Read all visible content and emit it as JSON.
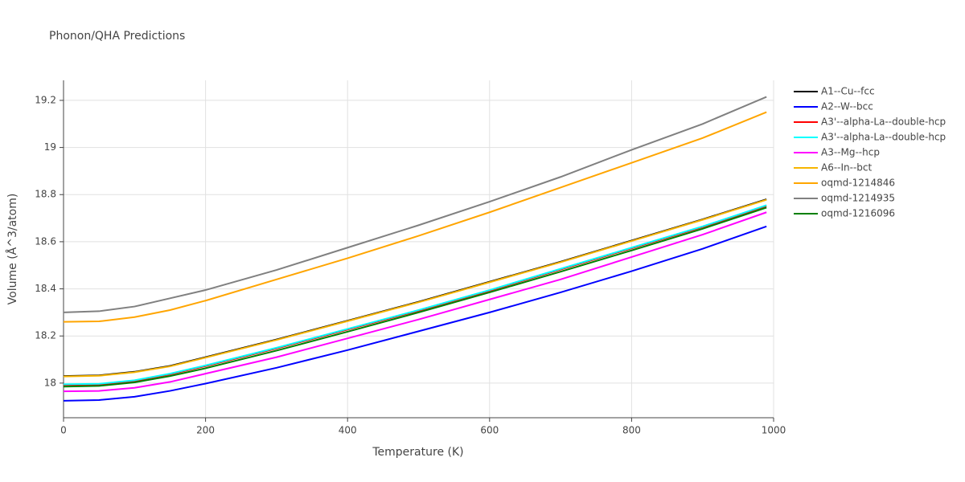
{
  "chart_data": {
    "type": "line",
    "title": "Phonon/QHA Predictions",
    "x_label": "Temperature (K)",
    "y_label": "Volume (Å^3/atom)",
    "x": [
      0,
      50,
      100,
      150,
      200,
      300,
      400,
      500,
      600,
      700,
      800,
      900,
      990
    ],
    "xlim": [
      0,
      1000
    ],
    "xticks": [
      0,
      200,
      400,
      600,
      800,
      1000
    ],
    "ylim": [
      17.853,
      19.285
    ],
    "yticks": [
      18,
      18.2,
      18.4,
      18.6,
      18.8,
      19,
      19.2
    ],
    "grid": true,
    "legend": "right",
    "series": [
      {
        "name": "A1--Cu--fcc",
        "color": "#000000",
        "values": [
          18.03,
          18.033,
          18.048,
          18.073,
          18.11,
          18.185,
          18.265,
          18.345,
          18.43,
          18.515,
          18.605,
          18.695,
          18.78
        ]
      },
      {
        "name": "A2--W--bcc",
        "color": "#0000ff",
        "values": [
          17.925,
          17.928,
          17.942,
          17.967,
          17.998,
          18.065,
          18.14,
          18.22,
          18.3,
          18.385,
          18.475,
          18.57,
          18.665
        ]
      },
      {
        "name": "A3'--alpha-La--double-hcp",
        "color": "#ff0000",
        "values": [
          17.992,
          17.994,
          18.009,
          18.037,
          18.072,
          18.147,
          18.227,
          18.307,
          18.392,
          18.482,
          18.572,
          18.662,
          18.752
        ]
      },
      {
        "name": "A3'--alpha-La--double-hcp",
        "color": "#00ffff",
        "values": [
          17.995,
          17.997,
          18.012,
          18.04,
          18.075,
          18.15,
          18.23,
          18.31,
          18.395,
          18.485,
          18.575,
          18.665,
          18.755
        ]
      },
      {
        "name": "A3--Mg--hcp",
        "color": "#ff00ff",
        "values": [
          17.965,
          17.967,
          17.98,
          18.005,
          18.04,
          18.11,
          18.19,
          18.27,
          18.355,
          18.44,
          18.535,
          18.63,
          18.725
        ]
      },
      {
        "name": "A6--In--bct",
        "color": "#f7b500",
        "values": [
          18.028,
          18.031,
          18.046,
          18.071,
          18.108,
          18.183,
          18.263,
          18.343,
          18.428,
          18.513,
          18.603,
          18.693,
          18.778
        ]
      },
      {
        "name": "oqmd-1214846",
        "color": "#ffa500",
        "values": [
          18.26,
          18.262,
          18.28,
          18.31,
          18.35,
          18.44,
          18.53,
          18.625,
          18.725,
          18.83,
          18.935,
          19.04,
          19.15
        ]
      },
      {
        "name": "oqmd-1214935",
        "color": "#808080",
        "values": [
          18.3,
          18.305,
          18.325,
          18.36,
          18.395,
          18.48,
          18.575,
          18.67,
          18.77,
          18.875,
          18.99,
          19.1,
          19.215
        ]
      },
      {
        "name": "oqmd-1216096",
        "color": "#008000",
        "values": [
          17.985,
          17.988,
          18.003,
          18.03,
          18.063,
          18.138,
          18.218,
          18.3,
          18.385,
          18.473,
          18.563,
          18.655,
          18.745
        ]
      }
    ]
  }
}
